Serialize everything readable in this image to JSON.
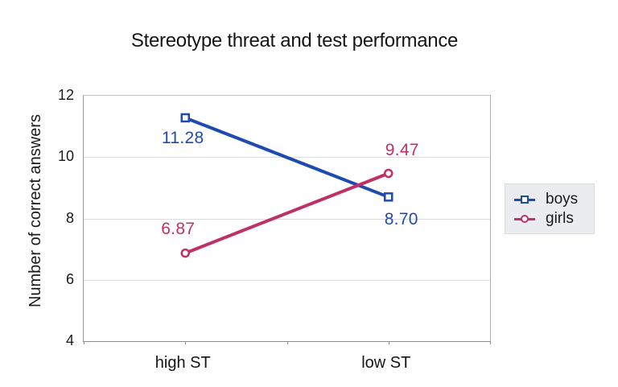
{
  "chart_data": {
    "type": "line",
    "title": "Stereotype threat and test performance",
    "categories": [
      "high ST",
      "low ST"
    ],
    "series": [
      {
        "name": "boys",
        "values": [
          11.28,
          8.7
        ],
        "labels": [
          "11.28",
          "8.70"
        ],
        "color": "#1F4BB0",
        "marker": "square",
        "label_offsets": [
          [
            -2,
            27
          ],
          [
            17,
            29
          ]
        ]
      },
      {
        "name": "girls",
        "values": [
          6.87,
          9.47
        ],
        "labels": [
          "6.87",
          "9.47"
        ],
        "color": "#BF3166",
        "marker": "circle",
        "label_offsets": [
          [
            -8,
            -29
          ],
          [
            18,
            -27
          ]
        ]
      }
    ],
    "xlabel": "",
    "ylabel": "Number of correct answers",
    "ylim": [
      4,
      12
    ],
    "yticks": [
      4,
      6,
      8,
      10,
      12
    ],
    "grid": true,
    "legend_position": "right",
    "colors": {
      "grid": "#DCDCDC",
      "axis": "#8C8C8C",
      "legend_bg": "#EAECF0",
      "text": "#1A1A1A"
    }
  }
}
